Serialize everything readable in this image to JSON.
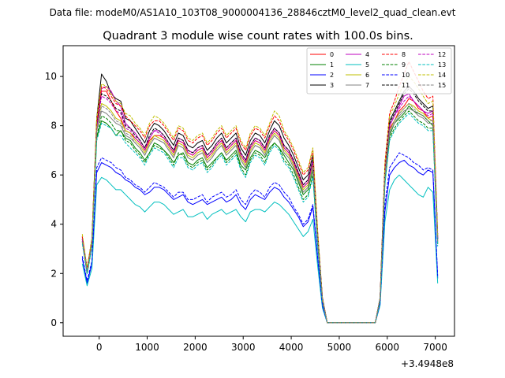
{
  "figure": {
    "suptitle": "Data file: modeM0/AS1A10_103T08_9000004136_28846cztM0_level2_quad_clean.evt"
  },
  "chart_data": {
    "type": "line",
    "title": "Quadrant 3 module wise count rates with 100.0s bins.",
    "xlabel": "",
    "ylabel": "",
    "x_offset_label": "+3.4948e8",
    "xlim": [
      -750,
      7400
    ],
    "ylim": [
      -0.55,
      11.25
    ],
    "xticks": [
      0,
      1000,
      2000,
      3000,
      4000,
      5000,
      6000,
      7000
    ],
    "yticks": [
      0,
      2,
      4,
      6,
      8,
      10
    ],
    "legend_position": "top-right",
    "x": [
      -350,
      -250,
      -150,
      -50,
      50,
      150,
      250,
      350,
      450,
      550,
      650,
      750,
      850,
      950,
      1050,
      1150,
      1250,
      1350,
      1450,
      1550,
      1650,
      1750,
      1850,
      1950,
      2050,
      2150,
      2250,
      2350,
      2450,
      2550,
      2650,
      2750,
      2850,
      2950,
      3050,
      3150,
      3250,
      3350,
      3450,
      3550,
      3650,
      3750,
      3850,
      3950,
      4050,
      4150,
      4250,
      4350,
      4450,
      4550,
      4650,
      4750,
      5750,
      5850,
      5950,
      6050,
      6150,
      6250,
      6350,
      6450,
      6550,
      6650,
      6750,
      6850,
      6950,
      7050
    ],
    "series": [
      {
        "name": "0",
        "color": "#ff0000",
        "dash": "solid",
        "values": [
          3.4,
          2.1,
          3.2,
          7.9,
          9.4,
          9.4,
          9.0,
          8.6,
          8.3,
          7.8,
          7.7,
          7.5,
          7.3,
          7.0,
          7.4,
          7.6,
          7.6,
          7.5,
          7.2,
          6.9,
          7.4,
          7.3,
          6.9,
          6.8,
          7.0,
          7.1,
          6.7,
          6.9,
          7.2,
          7.4,
          7.0,
          7.2,
          7.4,
          6.8,
          6.5,
          7.1,
          7.4,
          7.3,
          7.0,
          7.5,
          7.8,
          7.6,
          7.1,
          6.9,
          6.5,
          6.0,
          5.5,
          5.7,
          6.5,
          3.5,
          1.0,
          0,
          0,
          1.0,
          6.0,
          7.9,
          8.2,
          8.6,
          8.8,
          9.1,
          9.0,
          8.7,
          8.6,
          8.3,
          8.4,
          3.4
        ]
      },
      {
        "name": "1",
        "color": "#008000",
        "dash": "solid",
        "values": [
          3.3,
          2.0,
          3.1,
          7.5,
          8.2,
          8.1,
          7.9,
          7.6,
          7.8,
          7.5,
          7.4,
          7.1,
          6.9,
          6.6,
          6.9,
          7.3,
          7.2,
          7.0,
          6.8,
          6.5,
          6.8,
          6.9,
          6.5,
          6.4,
          6.6,
          6.7,
          6.3,
          6.5,
          6.7,
          6.9,
          6.6,
          6.8,
          7.0,
          6.4,
          6.2,
          6.7,
          7.0,
          6.9,
          6.7,
          7.1,
          7.3,
          7.1,
          6.8,
          6.5,
          6.2,
          5.7,
          5.2,
          5.4,
          6.2,
          3.3,
          0.9,
          0,
          0,
          0.9,
          5.7,
          7.6,
          8.1,
          8.3,
          8.5,
          8.8,
          8.6,
          8.5,
          8.4,
          8.2,
          8.0,
          3.2
        ]
      },
      {
        "name": "2",
        "color": "#0000ff",
        "dash": "solid",
        "values": [
          2.6,
          1.6,
          2.4,
          6.1,
          6.5,
          6.4,
          6.3,
          6.1,
          6.0,
          5.8,
          5.7,
          5.5,
          5.4,
          5.2,
          5.3,
          5.5,
          5.5,
          5.4,
          5.2,
          5.0,
          5.1,
          5.2,
          4.9,
          4.8,
          4.9,
          5.0,
          4.8,
          4.9,
          5.0,
          5.1,
          4.9,
          5.0,
          5.2,
          4.8,
          4.6,
          5.0,
          5.2,
          5.1,
          5.0,
          5.3,
          5.5,
          5.4,
          5.1,
          4.9,
          4.6,
          4.3,
          3.9,
          4.1,
          4.7,
          2.6,
          0.7,
          0,
          0,
          0.8,
          4.5,
          6.0,
          6.3,
          6.5,
          6.6,
          6.4,
          6.3,
          6.1,
          6.0,
          6.2,
          6.1,
          1.8
        ]
      },
      {
        "name": "3",
        "color": "#000000",
        "dash": "solid",
        "values": [
          3.5,
          2.2,
          3.4,
          8.3,
          10.1,
          9.8,
          9.3,
          9.1,
          9.0,
          8.3,
          8.2,
          7.9,
          7.6,
          7.3,
          7.8,
          8.1,
          8.0,
          7.8,
          7.5,
          7.2,
          7.7,
          7.6,
          7.2,
          7.1,
          7.3,
          7.4,
          7.0,
          7.2,
          7.5,
          7.7,
          7.3,
          7.5,
          7.7,
          7.1,
          6.8,
          7.4,
          7.7,
          7.6,
          7.3,
          7.8,
          8.2,
          8.0,
          7.5,
          7.2,
          6.8,
          6.3,
          5.8,
          6.0,
          6.8,
          3.6,
          1.0,
          0,
          0,
          1.0,
          6.3,
          8.2,
          8.6,
          9.0,
          9.4,
          9.6,
          9.4,
          9.1,
          8.9,
          8.7,
          8.8,
          3.5
        ]
      },
      {
        "name": "4",
        "color": "#bf00bf",
        "dash": "solid",
        "values": [
          3.5,
          2.1,
          3.3,
          8.0,
          9.5,
          9.6,
          9.4,
          9.0,
          8.8,
          8.1,
          7.9,
          7.7,
          7.4,
          7.1,
          7.5,
          7.8,
          7.8,
          7.6,
          7.3,
          7.0,
          7.5,
          7.4,
          7.0,
          6.9,
          7.1,
          7.2,
          6.8,
          7.0,
          7.3,
          7.5,
          7.1,
          7.3,
          7.5,
          6.9,
          6.6,
          7.2,
          7.5,
          7.4,
          7.1,
          7.6,
          7.9,
          7.7,
          7.2,
          7.0,
          6.6,
          6.1,
          5.6,
          5.8,
          6.6,
          3.5,
          1.0,
          0,
          0,
          1.0,
          6.1,
          8.0,
          8.4,
          8.8,
          9.2,
          9.3,
          9.0,
          8.8,
          8.6,
          8.5,
          8.6,
          3.4
        ]
      },
      {
        "name": "5",
        "color": "#00bfbf",
        "dash": "solid",
        "values": [
          2.4,
          1.5,
          2.2,
          5.6,
          5.9,
          5.8,
          5.6,
          5.4,
          5.4,
          5.2,
          5.0,
          4.8,
          4.7,
          4.5,
          4.7,
          4.9,
          4.9,
          4.8,
          4.6,
          4.4,
          4.5,
          4.6,
          4.3,
          4.3,
          4.4,
          4.5,
          4.2,
          4.4,
          4.5,
          4.6,
          4.4,
          4.5,
          4.6,
          4.3,
          4.1,
          4.5,
          4.6,
          4.6,
          4.5,
          4.7,
          4.9,
          4.8,
          4.6,
          4.4,
          4.1,
          3.8,
          3.5,
          3.7,
          4.2,
          2.3,
          0.6,
          0,
          0,
          0.7,
          4.1,
          5.4,
          5.8,
          6.0,
          5.8,
          5.6,
          5.4,
          5.2,
          5.1,
          5.5,
          5.3,
          1.6
        ]
      },
      {
        "name": "6",
        "color": "#bfbf00",
        "dash": "solid",
        "values": [
          3.4,
          2.1,
          3.2,
          7.9,
          8.9,
          8.8,
          8.6,
          8.3,
          8.2,
          7.8,
          7.7,
          7.4,
          7.2,
          6.9,
          7.3,
          7.6,
          7.5,
          7.4,
          7.1,
          6.8,
          7.3,
          7.2,
          6.8,
          6.7,
          6.9,
          7.0,
          6.6,
          6.8,
          7.1,
          7.3,
          6.9,
          7.1,
          7.3,
          6.7,
          6.4,
          7.0,
          7.3,
          7.2,
          6.9,
          7.4,
          7.7,
          7.5,
          7.0,
          6.8,
          6.4,
          5.9,
          5.4,
          5.6,
          6.4,
          3.4,
          0.9,
          0,
          0,
          1.0,
          5.9,
          7.8,
          8.2,
          8.5,
          8.7,
          8.9,
          8.8,
          8.6,
          8.5,
          8.3,
          8.2,
          3.3
        ]
      },
      {
        "name": "7",
        "color": "#808080",
        "dash": "solid",
        "values": [
          3.3,
          2.0,
          3.2,
          7.8,
          8.6,
          8.5,
          8.3,
          8.1,
          8.0,
          7.6,
          7.5,
          7.3,
          7.1,
          6.8,
          7.2,
          7.5,
          7.4,
          7.3,
          7.0,
          6.7,
          7.2,
          7.1,
          6.7,
          6.6,
          6.8,
          6.9,
          6.5,
          6.7,
          7.0,
          7.2,
          6.8,
          7.0,
          7.2,
          6.6,
          6.3,
          6.9,
          7.2,
          7.1,
          6.8,
          7.3,
          7.6,
          7.4,
          6.9,
          6.7,
          6.3,
          5.8,
          5.3,
          5.5,
          6.3,
          3.4,
          0.9,
          0,
          0,
          1.0,
          5.8,
          7.7,
          8.1,
          8.4,
          8.6,
          8.7,
          8.6,
          8.4,
          8.3,
          8.1,
          8.1,
          3.3
        ]
      },
      {
        "name": "8",
        "color": "#ff0000",
        "dash": "dashed",
        "values": [
          3.5,
          2.2,
          3.4,
          8.2,
          9.6,
          9.5,
          9.2,
          8.9,
          8.8,
          8.4,
          8.2,
          8.0,
          7.8,
          7.5,
          8.0,
          8.2,
          8.2,
          8.0,
          7.7,
          7.4,
          7.9,
          7.8,
          7.4,
          7.3,
          7.5,
          7.6,
          7.2,
          7.4,
          7.7,
          7.9,
          7.5,
          7.7,
          7.9,
          7.3,
          7.0,
          7.6,
          7.9,
          7.8,
          7.5,
          8.0,
          8.4,
          8.2,
          7.7,
          7.4,
          7.0,
          6.5,
          6.0,
          6.2,
          7.0,
          3.7,
          1.0,
          0,
          0,
          1.0,
          6.5,
          8.5,
          9.0,
          9.6,
          10.1,
          10.6,
          10.2,
          9.8,
          9.4,
          9.1,
          9.2,
          3.6
        ]
      },
      {
        "name": "9",
        "color": "#008000",
        "dash": "dashed",
        "values": [
          3.3,
          2.0,
          3.1,
          7.6,
          8.4,
          8.3,
          8.1,
          7.8,
          7.8,
          7.4,
          7.3,
          7.0,
          6.8,
          6.5,
          6.9,
          7.2,
          7.1,
          7.0,
          6.7,
          6.4,
          6.9,
          6.8,
          6.4,
          6.3,
          6.5,
          6.6,
          6.2,
          6.4,
          6.7,
          6.9,
          6.5,
          6.7,
          6.9,
          6.3,
          6.0,
          6.6,
          6.9,
          6.8,
          6.5,
          7.0,
          7.3,
          7.1,
          6.6,
          6.4,
          6.0,
          5.5,
          5.0,
          5.2,
          6.0,
          3.2,
          0.9,
          0,
          0,
          0.9,
          5.7,
          7.5,
          7.9,
          8.2,
          8.4,
          8.6,
          8.4,
          8.2,
          8.1,
          7.9,
          7.9,
          3.2
        ]
      },
      {
        "name": "10",
        "color": "#0000ff",
        "dash": "dashed",
        "values": [
          2.7,
          1.7,
          2.5,
          6.3,
          6.7,
          6.6,
          6.5,
          6.3,
          6.2,
          5.9,
          5.8,
          5.6,
          5.5,
          5.3,
          5.5,
          5.7,
          5.6,
          5.5,
          5.3,
          5.1,
          5.3,
          5.3,
          5.0,
          5.0,
          5.1,
          5.2,
          4.9,
          5.1,
          5.2,
          5.3,
          5.1,
          5.2,
          5.4,
          5.0,
          4.8,
          5.2,
          5.4,
          5.3,
          5.1,
          5.5,
          5.7,
          5.6,
          5.3,
          5.1,
          4.7,
          4.4,
          4.0,
          4.2,
          4.8,
          2.7,
          0.7,
          0,
          0,
          0.8,
          4.8,
          6.3,
          6.6,
          6.9,
          6.8,
          6.7,
          6.5,
          6.4,
          6.2,
          6.3,
          6.2,
          1.9
        ]
      },
      {
        "name": "11",
        "color": "#000000",
        "dash": "dashed",
        "values": [
          3.4,
          2.1,
          3.3,
          8.0,
          9.3,
          9.2,
          9.0,
          8.7,
          8.6,
          8.0,
          7.9,
          7.6,
          7.4,
          7.1,
          7.6,
          7.9,
          7.8,
          7.6,
          7.3,
          7.0,
          7.5,
          7.4,
          7.0,
          6.9,
          7.1,
          7.2,
          6.8,
          7.0,
          7.3,
          7.5,
          7.1,
          7.3,
          7.5,
          6.9,
          6.6,
          7.2,
          7.5,
          7.4,
          7.1,
          7.6,
          7.9,
          7.7,
          7.2,
          7.0,
          6.6,
          6.1,
          5.6,
          5.8,
          6.6,
          3.5,
          1.0,
          0,
          0,
          1.0,
          6.2,
          8.1,
          8.5,
          8.9,
          9.3,
          9.5,
          9.3,
          9.0,
          8.8,
          8.6,
          8.6,
          3.4
        ]
      },
      {
        "name": "12",
        "color": "#bf00bf",
        "dash": "dashed",
        "values": [
          3.4,
          2.1,
          3.3,
          7.9,
          9.2,
          9.1,
          8.9,
          8.6,
          8.5,
          7.9,
          7.8,
          7.5,
          7.3,
          7.0,
          7.5,
          7.8,
          7.7,
          7.5,
          7.2,
          6.9,
          7.4,
          7.3,
          6.9,
          6.8,
          7.0,
          7.1,
          6.7,
          6.9,
          7.2,
          7.4,
          7.0,
          7.2,
          7.4,
          6.8,
          6.5,
          7.1,
          7.4,
          7.3,
          7.0,
          7.5,
          7.8,
          7.6,
          7.1,
          6.9,
          6.5,
          6.0,
          5.5,
          5.7,
          6.5,
          3.5,
          1.0,
          0,
          0,
          1.0,
          6.1,
          8.0,
          8.4,
          8.7,
          9.0,
          9.2,
          9.0,
          8.8,
          8.6,
          8.4,
          8.5,
          3.4
        ]
      },
      {
        "name": "13",
        "color": "#00bfbf",
        "dash": "dashed",
        "values": [
          3.2,
          2.0,
          3.1,
          7.4,
          8.1,
          8.0,
          7.9,
          7.6,
          7.6,
          7.3,
          7.1,
          6.9,
          6.7,
          6.4,
          6.8,
          7.1,
          7.0,
          6.9,
          6.6,
          6.3,
          6.7,
          6.7,
          6.3,
          6.2,
          6.4,
          6.5,
          6.1,
          6.3,
          6.6,
          6.8,
          6.4,
          6.6,
          6.8,
          6.2,
          5.9,
          6.5,
          6.8,
          6.7,
          6.4,
          6.9,
          7.2,
          7.0,
          6.5,
          6.3,
          5.9,
          5.4,
          4.9,
          5.1,
          5.9,
          3.1,
          0.9,
          0,
          0,
          0.9,
          5.6,
          7.4,
          7.8,
          8.1,
          8.3,
          8.5,
          8.3,
          8.1,
          8.0,
          7.8,
          7.8,
          3.1
        ]
      },
      {
        "name": "14",
        "color": "#bfbf00",
        "dash": "dashed",
        "values": [
          3.6,
          2.2,
          3.4,
          8.3,
          9.7,
          9.6,
          9.3,
          9.0,
          8.9,
          8.5,
          8.4,
          8.1,
          7.9,
          7.6,
          8.1,
          8.4,
          8.3,
          8.1,
          7.8,
          7.5,
          8.0,
          7.9,
          7.5,
          7.4,
          7.6,
          7.7,
          7.3,
          7.5,
          7.8,
          8.0,
          7.6,
          7.8,
          8.0,
          7.4,
          7.1,
          7.7,
          8.0,
          7.9,
          7.6,
          8.1,
          8.6,
          8.4,
          7.8,
          7.5,
          7.1,
          6.6,
          6.1,
          6.3,
          7.1,
          3.7,
          1.0,
          0,
          0,
          1.0,
          6.4,
          8.4,
          8.8,
          9.3,
          9.7,
          10.0,
          9.8,
          9.5,
          9.2,
          8.9,
          9.0,
          3.5
        ]
      },
      {
        "name": "15",
        "color": "#808080",
        "dash": "dashed",
        "values": [
          3.3,
          2.1,
          3.2,
          7.8,
          8.8,
          8.7,
          8.5,
          8.2,
          8.1,
          7.7,
          7.6,
          7.3,
          7.1,
          6.8,
          7.2,
          7.5,
          7.4,
          7.3,
          7.0,
          6.7,
          7.2,
          7.1,
          6.7,
          6.6,
          6.8,
          6.9,
          6.5,
          6.7,
          7.0,
          7.2,
          6.8,
          7.0,
          7.2,
          6.6,
          6.3,
          6.9,
          7.2,
          7.1,
          6.8,
          7.3,
          7.6,
          7.4,
          6.9,
          6.7,
          6.3,
          5.8,
          5.3,
          5.5,
          6.3,
          3.4,
          0.9,
          0,
          0,
          1.0,
          5.9,
          7.8,
          8.2,
          8.5,
          8.7,
          8.9,
          8.7,
          8.5,
          8.4,
          8.2,
          8.2,
          3.3
        ]
      }
    ]
  }
}
